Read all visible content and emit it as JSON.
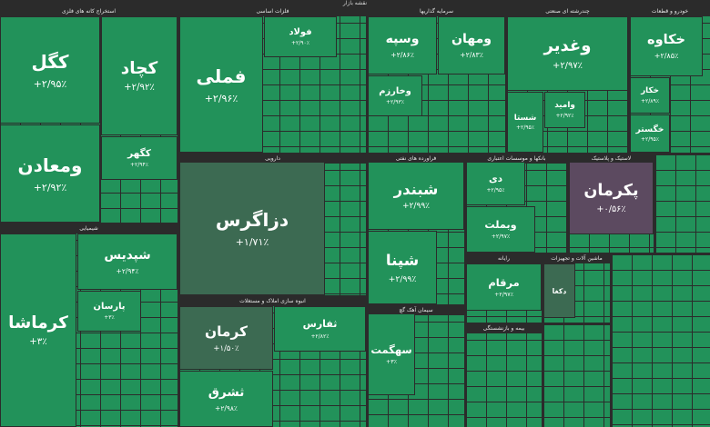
{
  "header": {
    "title": "نقشه بازار"
  },
  "sectors": [
    {
      "name": "استخراج کانه های فلزی",
      "tiles": [
        {
          "label": "کگل",
          "change": "+۲/۹۵٪"
        },
        {
          "label": "ومعادن",
          "change": "+۲/۹۲٪"
        },
        {
          "label": "کچاد",
          "change": "+۲/۹۲٪"
        },
        {
          "label": "کگهر",
          "change": "+۲/۹۴٪"
        }
      ]
    },
    {
      "name": "فلزات اساسی",
      "tiles": [
        {
          "label": "فملی",
          "change": "+۲/۹۶٪"
        },
        {
          "label": "فولاد",
          "change": "+۲/۹۰٪"
        }
      ]
    },
    {
      "name": "سرمایه گذاریها",
      "tiles": [
        {
          "label": "وسپه",
          "change": "+۲/۸۶٪"
        },
        {
          "label": "ومهان",
          "change": "+۲/۸۳٪"
        },
        {
          "label": "وخارزم",
          "change": "+۲/۹۳٪"
        }
      ]
    },
    {
      "name": "چندرشته ای صنعتی",
      "tiles": [
        {
          "label": "وغدیر",
          "change": "+۲/۹۷٪"
        },
        {
          "label": "شستا",
          "change": "+۲/۹۵٪"
        },
        {
          "label": "وامید",
          "change": "+۲/۹۲٪"
        }
      ]
    },
    {
      "name": "خودرو و قطعات",
      "tiles": [
        {
          "label": "خکاوه",
          "change": "+۲/۸۵٪"
        },
        {
          "label": "خکار",
          "change": "+۲/۸۹٪"
        },
        {
          "label": "خگستر",
          "change": "+۲/۹۵٪"
        }
      ]
    },
    {
      "name": "دارویی",
      "tiles": [
        {
          "label": "دزاگرس",
          "change": "+۱/۷۱٪"
        }
      ]
    },
    {
      "name": "فراورده های نفتی",
      "tiles": [
        {
          "label": "شبندر",
          "change": "+۲/۹۹٪"
        },
        {
          "label": "شپنا",
          "change": "+۲/۹۹٪"
        }
      ]
    },
    {
      "name": "بانکها و موسسات اعتباری",
      "tiles": [
        {
          "label": "دی",
          "change": "+۲/۹۵٪"
        },
        {
          "label": "وبملت",
          "change": "+۲/۹۷٪"
        }
      ]
    },
    {
      "name": "لاستیک و پلاستیک",
      "tiles": [
        {
          "label": "پکرمان",
          "change": "+۰/۵۶٪"
        }
      ]
    },
    {
      "name": "شیمیایی",
      "tiles": [
        {
          "label": "کرماشا",
          "change": "+۳٪"
        },
        {
          "label": "شپدیس",
          "change": "+۲/۹۴٪"
        },
        {
          "label": "پارسان",
          "change": "+۳٪"
        }
      ]
    },
    {
      "name": "انبوه سازی املاک و مستغلات",
      "tiles": [
        {
          "label": "کرمان",
          "change": "+۱/۵۰٪"
        },
        {
          "label": "ثشرق",
          "change": "+۲/۹۸٪"
        },
        {
          "label": "ثفارس",
          "change": "+۲/۸۲٪"
        }
      ]
    },
    {
      "name": "سیمان آهک گچ",
      "tiles": [
        {
          "label": "سهگمت",
          "change": "+۳٪"
        }
      ]
    },
    {
      "name": "رایانه",
      "tiles": [
        {
          "label": "مرقام",
          "change": "+۲/۹۷٪"
        }
      ]
    },
    {
      "name": "ماشین آلات و تجهیزات",
      "tiles": [
        {
          "label": "دکغا"
        }
      ]
    },
    {
      "name": "بیمه و بازنشستگی",
      "tiles": []
    }
  ]
}
